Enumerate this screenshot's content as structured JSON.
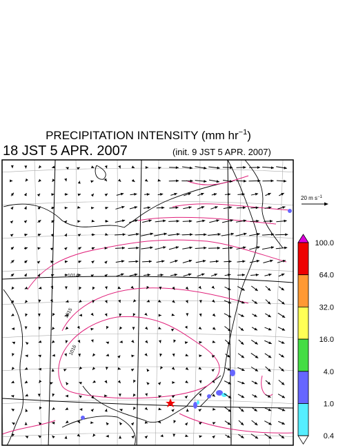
{
  "header": {
    "title": "PRECIPITATION INTENSITY (mm hr",
    "title_exp": "−1",
    "title_close": ")",
    "valid_time": "18 JST 5 APR. 2007",
    "init_time": "(init. 9 JST 5 APR. 2007)"
  },
  "wind_legend": {
    "label": "20 m s",
    "label_exp": "−1"
  },
  "colorbar": {
    "levels": [
      {
        "label": "100.0",
        "color": "#dd00dd"
      },
      {
        "label": "64.0",
        "color": "#ee0000"
      },
      {
        "label": "32.0",
        "color": "#ff9933"
      },
      {
        "label": "16.0",
        "color": "#ffff55"
      },
      {
        "label": "4.0",
        "color": "#44dd44"
      },
      {
        "label": "1.0",
        "color": "#6666ff"
      },
      {
        "label": "0.4",
        "color": "#55eeff"
      }
    ]
  },
  "isobars": [
    {
      "label": "1014"
    },
    {
      "label": "1015"
    },
    {
      "label": "1016"
    }
  ]
}
